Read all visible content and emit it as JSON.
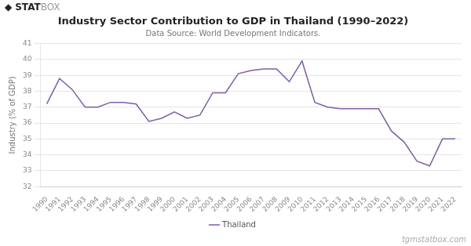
{
  "chart_data": {
    "type": "line",
    "title": "Industry Sector Contribution to GDP in Thailand (1990–2022)",
    "subtitle": "Data Source: World Development Indicators.",
    "ylabel": "Industry (% of GDP)",
    "x": [
      1990,
      1991,
      1992,
      1993,
      1994,
      1995,
      1996,
      1997,
      1998,
      1999,
      2000,
      2001,
      2002,
      2003,
      2004,
      2005,
      2006,
      2007,
      2008,
      2009,
      2010,
      2011,
      2012,
      2013,
      2014,
      2015,
      2016,
      2017,
      2018,
      2019,
      2020,
      2021,
      2022
    ],
    "series": [
      {
        "name": "Thailand",
        "color": "#7b5ea7",
        "values": [
          37.2,
          38.8,
          38.1,
          37.0,
          37.0,
          37.3,
          37.3,
          37.2,
          36.1,
          36.3,
          36.7,
          36.3,
          36.5,
          37.9,
          37.9,
          39.1,
          39.3,
          39.4,
          39.4,
          38.6,
          39.9,
          37.3,
          37.0,
          36.9,
          36.9,
          36.9,
          36.9,
          35.5,
          34.8,
          33.6,
          33.3,
          35.0,
          35.0
        ]
      }
    ],
    "xlim": [
      1989.5,
      2022.5
    ],
    "xticks": [
      1990,
      1991,
      1992,
      1993,
      1994,
      1995,
      1996,
      1997,
      1998,
      1999,
      2000,
      2001,
      2002,
      2003,
      2004,
      2005,
      2006,
      2007,
      2008,
      2009,
      2010,
      2011,
      2012,
      2013,
      2014,
      2015,
      2016,
      2017,
      2018,
      2019,
      2020,
      2021,
      2022
    ],
    "ylim": [
      32,
      41
    ],
    "yticks": [
      32,
      33,
      34,
      35,
      36,
      37,
      38,
      39,
      40,
      41
    ],
    "grid": true,
    "legend": "bottom",
    "annotations": [
      "◆",
      "STAT",
      "BOX",
      "tgmstatbox.com"
    ]
  }
}
